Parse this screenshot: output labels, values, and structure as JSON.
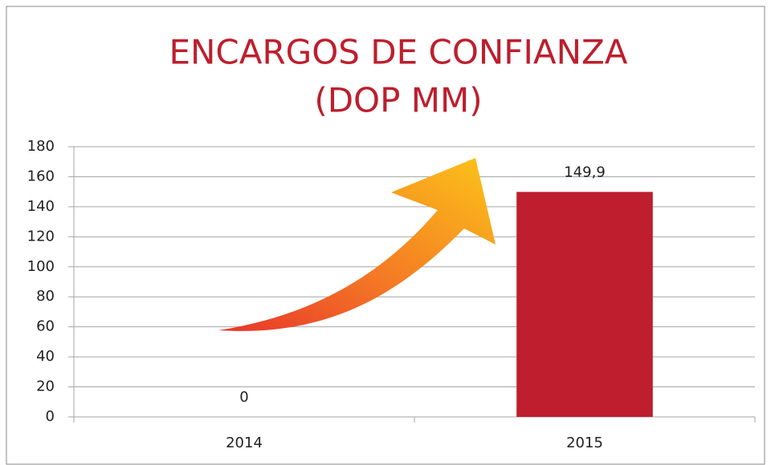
{
  "chart_data": {
    "type": "bar",
    "title": [
      "ENCARGOS DE CONFIANZA",
      "(DOP MM)"
    ],
    "categories": [
      "2014",
      "2015"
    ],
    "values": [
      0,
      149.9
    ],
    "value_labels": [
      "0",
      "149,9"
    ],
    "color": "#be1e2d",
    "ylim": [
      0,
      180
    ],
    "yticks": [
      0,
      20,
      40,
      60,
      80,
      100,
      120,
      140,
      160,
      180
    ],
    "grid": true
  }
}
